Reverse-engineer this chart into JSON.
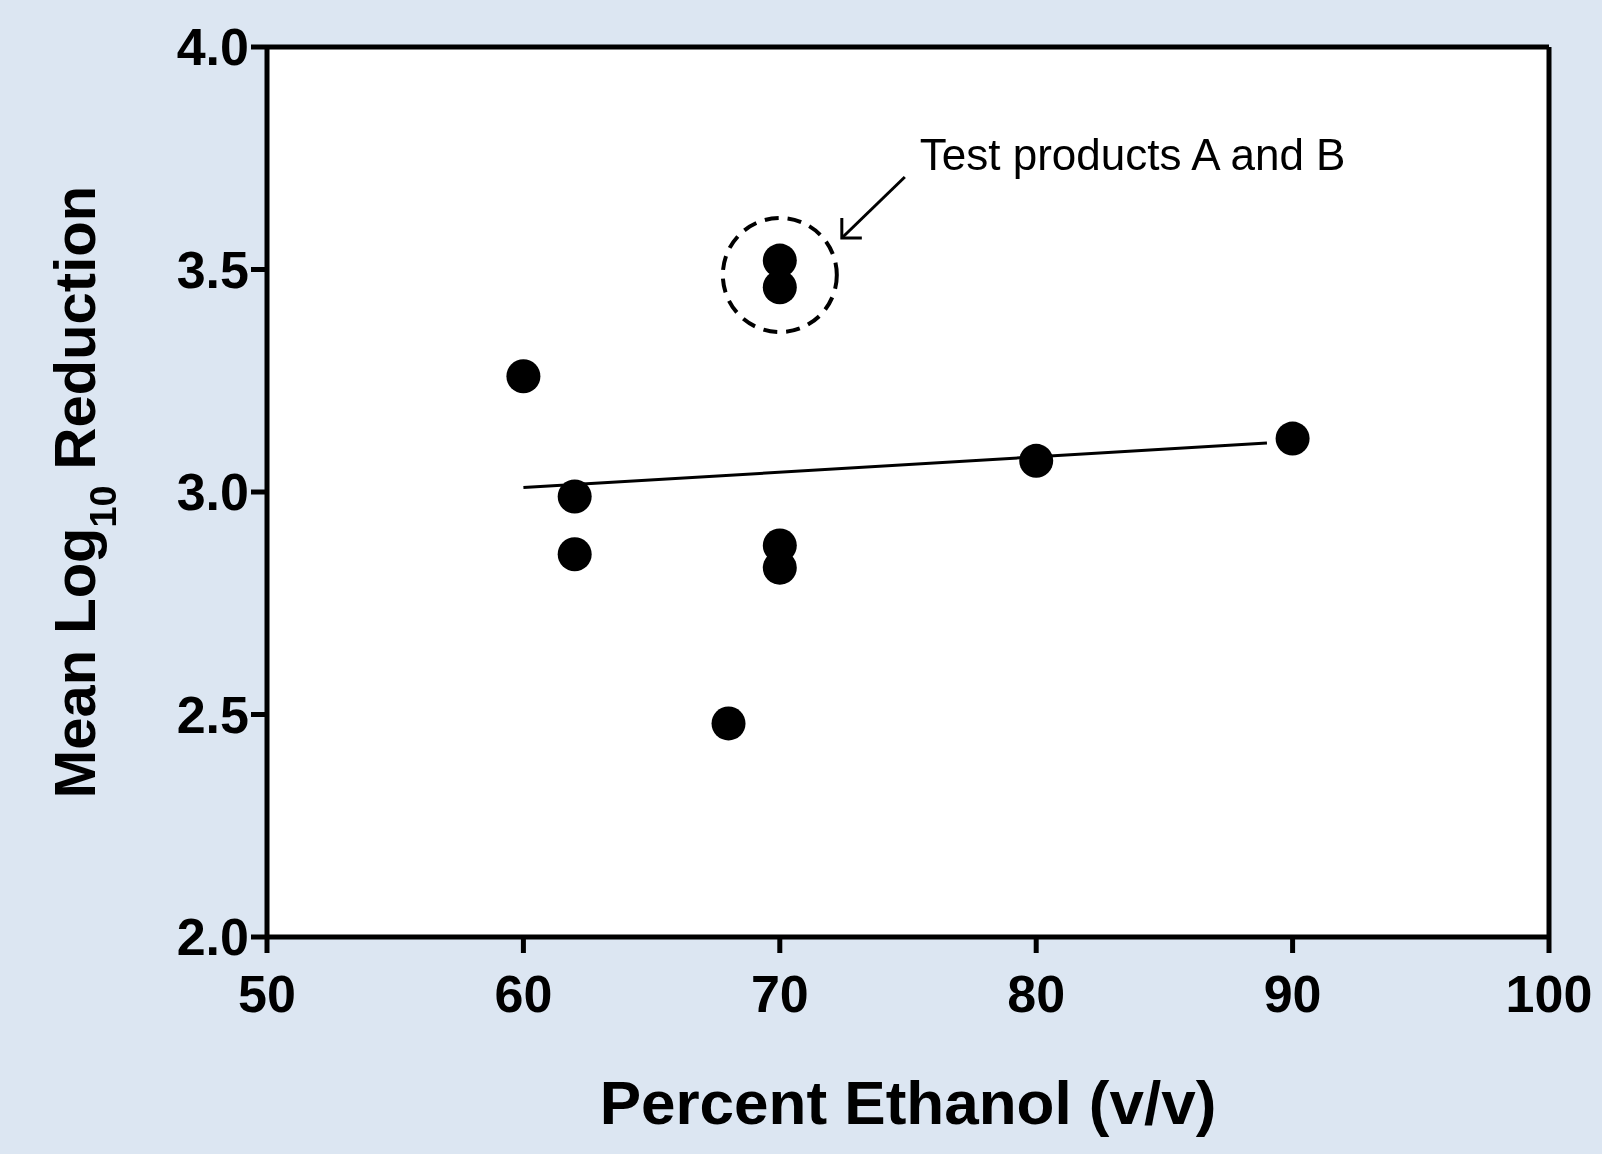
{
  "chart_data": {
    "type": "scatter",
    "xlabel": "Percent Ethanol (v/v)",
    "ylabel": "Mean Log$_{10}$ Reduction",
    "annotations": [
      "Test products A and B"
    ],
    "xlim": [
      50,
      100
    ],
    "xticks": [
      50,
      60,
      70,
      80,
      90,
      100
    ],
    "ylim": [
      2,
      4
    ],
    "yticks": [
      {
        "value": 2,
        "label": "2.0"
      },
      {
        "value": 2.5,
        "label": "2.5"
      },
      {
        "value": 3,
        "label": "3.0"
      },
      {
        "value": 3.5,
        "label": "3.5"
      },
      {
        "value": 4,
        "label": "4.0"
      }
    ],
    "grid": false,
    "legend": false,
    "marker": "circle",
    "series": [
      {
        "color": "#000000",
        "x": [
          60,
          62,
          62,
          68,
          70,
          70,
          70,
          70,
          80,
          90
        ],
        "values": [
          3.26,
          2.99,
          2.86,
          2.48,
          3.52,
          3.46,
          2.88,
          2.83,
          3.07,
          3.12
        ]
      },
      {
        "type": "line",
        "color": "#000000",
        "x": [
          60,
          89
        ],
        "values": [
          3.01,
          3.11
        ],
        "marker": "none",
        "line_style": "solid"
      }
    ]
  }
}
